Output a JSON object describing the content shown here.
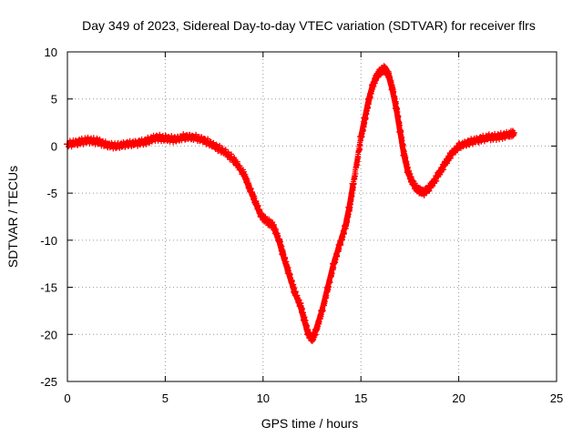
{
  "chart_data": {
    "type": "scatter",
    "title": "Day 349 of 2023, Sidereal Day-to-day VTEC variation (SDTVAR) for receiver flrs",
    "xlabel": "GPS time / hours",
    "ylabel": "SDTVAR / TECUs",
    "xlim": [
      0,
      25
    ],
    "ylim": [
      -25,
      10
    ],
    "xticks": [
      0,
      5,
      10,
      15,
      20,
      25
    ],
    "yticks": [
      -25,
      -20,
      -15,
      -10,
      -5,
      0,
      5,
      10
    ],
    "grid": true,
    "marker": "plus",
    "series_color": "#ff0000",
    "series": [
      {
        "name": "SDTVAR",
        "x": [
          0.0,
          0.5,
          1.0,
          1.5,
          2.0,
          2.5,
          3.0,
          3.5,
          4.0,
          4.5,
          5.0,
          5.5,
          6.0,
          6.5,
          7.0,
          7.5,
          8.0,
          8.5,
          9.0,
          9.3,
          9.6,
          9.9,
          10.2,
          10.5,
          10.8,
          11.0,
          11.3,
          11.6,
          11.9,
          12.1,
          12.3,
          12.5,
          12.7,
          13.0,
          13.3,
          13.6,
          13.9,
          14.2,
          14.4,
          14.6,
          15.0,
          15.2,
          15.4,
          15.6,
          15.8,
          16.0,
          16.2,
          16.4,
          16.6,
          16.8,
          17.0,
          17.2,
          17.4,
          17.6,
          17.8,
          18.0,
          18.2,
          18.4,
          18.7,
          19.0,
          19.3,
          19.6,
          20.0,
          20.5,
          21.0,
          21.5,
          22.0,
          22.5,
          22.8
        ],
        "y": [
          0.2,
          0.4,
          0.6,
          0.5,
          0.1,
          0.0,
          0.2,
          0.3,
          0.5,
          0.9,
          0.8,
          0.7,
          1.0,
          0.9,
          0.6,
          0.0,
          -0.6,
          -1.5,
          -3.0,
          -4.5,
          -6.0,
          -7.5,
          -8.0,
          -8.5,
          -10.0,
          -11.5,
          -13.5,
          -15.5,
          -17.0,
          -18.5,
          -20.0,
          -20.5,
          -19.5,
          -17.5,
          -15.0,
          -12.5,
          -10.5,
          -8.5,
          -6.5,
          -4.0,
          1.0,
          3.0,
          5.0,
          6.5,
          7.5,
          8.0,
          8.2,
          7.5,
          6.0,
          4.0,
          1.5,
          -1.0,
          -2.8,
          -3.8,
          -4.5,
          -4.8,
          -4.9,
          -4.6,
          -3.8,
          -2.8,
          -1.8,
          -0.8,
          0.0,
          0.4,
          0.7,
          0.9,
          1.0,
          1.2,
          1.4
        ]
      }
    ]
  }
}
